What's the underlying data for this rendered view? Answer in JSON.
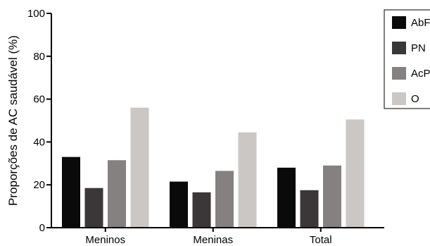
{
  "chart_data": {
    "type": "bar",
    "title": "",
    "xlabel": "",
    "ylabel": "Proporções de AC saudável (%)",
    "ylim": [
      0,
      100
    ],
    "yticks": [
      0,
      20,
      40,
      60,
      80,
      100
    ],
    "grid": false,
    "legend_position": "top-right",
    "categories": [
      "Meninos",
      "Meninas",
      "Total"
    ],
    "series": [
      {
        "name": "AbF",
        "color": "#0a0a0a",
        "values": [
          33,
          21.5,
          28
        ]
      },
      {
        "name": "PN",
        "color": "#3b3739",
        "values": [
          18.5,
          16.5,
          17.5
        ]
      },
      {
        "name": "AcP",
        "color": "#858181",
        "values": [
          31.5,
          26.5,
          29
        ]
      },
      {
        "name": "O",
        "color": "#cbc7c4",
        "values": [
          56,
          44.5,
          50.5
        ]
      }
    ]
  }
}
